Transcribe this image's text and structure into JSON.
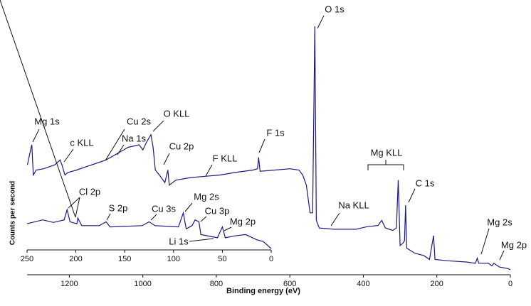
{
  "chart_data": [
    {
      "type": "line",
      "x_label": "Binding energy (eV)",
      "y_label": "Counts per second",
      "xlim": [
        1315,
        0
      ],
      "ylim": [
        0,
        100
      ],
      "xticks": [
        1200,
        1000,
        800,
        600,
        400,
        200,
        0
      ],
      "x": [
        1314,
        1304,
        1302,
        1298,
        1290,
        1270,
        1240,
        1225,
        1220,
        1212,
        1204,
        1180,
        1150,
        1100,
        1070,
        1040,
        1010,
        1000,
        990,
        978,
        972,
        966,
        955,
        940,
        932,
        928,
        910,
        870,
        830,
        790,
        750,
        700,
        688,
        685,
        681,
        640,
        600,
        575,
        565,
        555,
        545,
        538,
        532,
        528,
        520,
        480,
        420,
        390,
        360,
        350,
        340,
        320,
        310,
        305,
        300,
        292,
        288,
        285,
        282,
        260,
        235,
        220,
        209,
        205,
        170,
        120,
        95,
        90,
        86,
        60,
        50,
        45,
        30,
        10,
        0
      ],
      "series": [
        {
          "color": "#1a1a80",
          "values": [
            43,
            50,
            51,
            39,
            41,
            41.5,
            43,
            45,
            43,
            39,
            40,
            41,
            42.5,
            45,
            47.5,
            50,
            51,
            49,
            52,
            55,
            50,
            41,
            39,
            36,
            41,
            35,
            37,
            38,
            38.5,
            39,
            40,
            41,
            41.5,
            46,
            40.5,
            41,
            41.5,
            41,
            39,
            35,
            24,
            24,
            98,
            21,
            18,
            17.5,
            17.5,
            18.5,
            19,
            21,
            18,
            17,
            18,
            37,
            11,
            12,
            13,
            27,
            10,
            8,
            7,
            5.5,
            15,
            5.5,
            5,
            4.5,
            4,
            6,
            4,
            4,
            3,
            4,
            2.5,
            2,
            1.5
          ]
        }
      ],
      "annotations": [
        "O 1s",
        "Mg 1s",
        "c KLL",
        "Cu 2s",
        "Na 1s",
        "O KLL",
        "Cu 2p",
        "F KLL",
        "F 1s",
        "Mg KLL",
        "C 1s",
        "Na KLL",
        "Mg 2s",
        "Mg 2p"
      ]
    },
    {
      "type": "line",
      "xlim": [
        250,
        0
      ],
      "ylim": [
        0,
        100
      ],
      "xticks": [
        250,
        200,
        150,
        100,
        50,
        0
      ],
      "x": [
        250,
        234,
        223,
        212,
        209,
        206,
        199,
        198,
        194,
        176,
        169,
        165,
        132,
        125,
        119,
        95,
        90,
        87,
        81,
        78,
        74,
        72,
        55,
        50,
        47,
        37,
        26,
        15,
        8,
        0
      ],
      "series": [
        {
          "color": "#1a1a80",
          "values": [
            41,
            47,
            43,
            47,
            63,
            44,
            41,
            50,
            38,
            38,
            44,
            36,
            38,
            44,
            38,
            36,
            58,
            33,
            38,
            47,
            44,
            24,
            19,
            36,
            19,
            22,
            24,
            16,
            13,
            2
          ]
        }
      ],
      "annotations": [
        "Cl 2p",
        "S 2p",
        "Cu 3s",
        "Mg 2s",
        "Cu 3p",
        "Mg 2p",
        "Li 1s"
      ]
    }
  ]
}
